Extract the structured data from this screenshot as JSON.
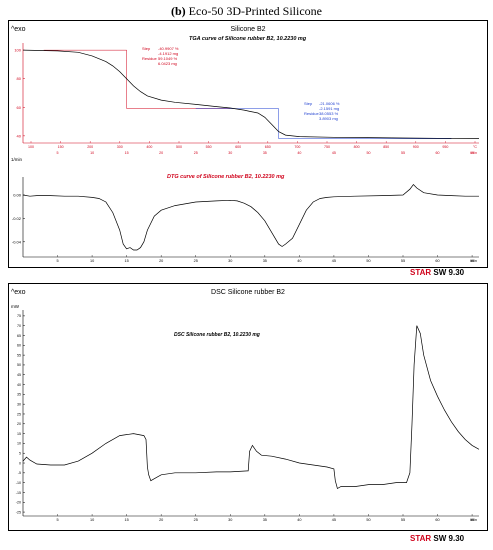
{
  "figure": {
    "label": "(b)",
    "title": "Eco-50 3D-Printed Silicone"
  },
  "top_panel": {
    "exo_label": "^exo",
    "header": "Silicone B2",
    "tga_title": "TGA curve of  Silicone rubber B2, 10.2230 mg",
    "dtg_title": "DTG curve of  Silicone rubber B2, 10.2230 mg",
    "dtg_axis_unit": "1/min",
    "step1": {
      "step": "Step",
      "step_val": "-40.9907 %",
      "step_mg": "-4.1912 mg",
      "residue": "Residue",
      "res_val": "59.1049 %",
      "res_mg": "6.0423 mg"
    },
    "step2": {
      "step": "Step",
      "step_val": "-21.0606 %",
      "step_mg": "-2.1591 mg",
      "residue": "Residue",
      "res_val": "38.0553 %",
      "res_mg": "3.8903 mg"
    },
    "star_brand": "STARe SW 9.30",
    "star_prefix": "STAR",
    "star_suffix": " SW 9.30"
  },
  "bottom_panel": {
    "exo_label": "^exo",
    "header": "DSC Silicone rubber B2",
    "dsc_title": "DSC Silicone rubber B2, 10.2230 mg",
    "axis_unit": "mW",
    "star_prefix": "STAR",
    "star_suffix": " SW 9.30"
  },
  "chart_data": [
    {
      "type": "line",
      "title": "TGA curve of  Silicone rubber B2, 10.2230 mg",
      "xlabel": "min",
      "ylabel": "%",
      "x_ticks": [
        5,
        10,
        15,
        20,
        25,
        30,
        35,
        40,
        45,
        50,
        55,
        60,
        65
      ],
      "temp_ticks": [
        "100",
        "150",
        "200",
        "300",
        "400",
        "500",
        "550",
        "600",
        "650",
        "700",
        "750",
        "800",
        "850",
        "900",
        "950",
        "°C"
      ],
      "y_ticks": [
        40,
        60,
        80,
        100
      ],
      "ylim": [
        35,
        105
      ],
      "xlim": [
        0,
        66
      ],
      "series": [
        {
          "x": [
            0,
            5,
            8,
            10,
            12,
            13,
            14,
            15,
            16,
            17,
            18,
            20,
            22,
            25,
            28,
            30,
            32,
            33,
            34,
            35,
            36,
            37,
            38,
            40,
            45,
            50,
            55,
            60,
            66
          ],
          "values": [
            100,
            99.5,
            98.5,
            96,
            92,
            89,
            85,
            80,
            75,
            71,
            68,
            65,
            63.5,
            62,
            60.5,
            59.5,
            58,
            57,
            56,
            53,
            48,
            43,
            40.5,
            39.5,
            39,
            38.8,
            38.5,
            38.3,
            38.2
          ]
        }
      ]
    },
    {
      "type": "line",
      "title": "DTG curve of  Silicone rubber B2, 10.2230 mg",
      "xlabel": "min",
      "ylabel": "1/min",
      "x_ticks": [
        5,
        10,
        15,
        20,
        25,
        30,
        35,
        40,
        45,
        50,
        55,
        60,
        65
      ],
      "y_ticks": [
        0.0,
        -0.02,
        -0.04
      ],
      "ylim": [
        -0.053,
        0.012
      ],
      "xlim": [
        0,
        66
      ],
      "series": [
        {
          "x": [
            0,
            1,
            2,
            4,
            6,
            8,
            10,
            11,
            12,
            13,
            14,
            14.5,
            15,
            15.5,
            16,
            16.5,
            17,
            17.5,
            18,
            19,
            20,
            22,
            25,
            28,
            30,
            31,
            32,
            33,
            34,
            35,
            36,
            37,
            37.5,
            38,
            39,
            40,
            41,
            42,
            43,
            44,
            45,
            48,
            52,
            55,
            56,
            56.5,
            57,
            58,
            60,
            62,
            64,
            66
          ],
          "values": [
            0.0,
            -0.001,
            -0.0005,
            -0.0005,
            -0.001,
            -0.001,
            -0.002,
            -0.003,
            -0.006,
            -0.015,
            -0.03,
            -0.042,
            -0.046,
            -0.045,
            -0.047,
            -0.047,
            -0.045,
            -0.04,
            -0.03,
            -0.018,
            -0.013,
            -0.009,
            -0.006,
            -0.005,
            -0.0045,
            -0.005,
            -0.007,
            -0.01,
            -0.015,
            -0.022,
            -0.032,
            -0.042,
            -0.044,
            -0.042,
            -0.037,
            -0.025,
            -0.013,
            -0.006,
            -0.003,
            -0.002,
            -0.0015,
            -0.001,
            -0.0005,
            0.0,
            0.005,
            0.009,
            0.006,
            0.002,
            0.0,
            -0.0005,
            -0.001,
            -0.001
          ]
        }
      ]
    },
    {
      "type": "line",
      "title": "DSC Silicone rubber B2, 10.2230 mg",
      "xlabel": "min",
      "ylabel": "mW",
      "x_ticks": [
        5,
        10,
        15,
        20,
        25,
        30,
        35,
        40,
        45,
        50,
        55,
        60,
        65
      ],
      "y_ticks": [
        -25,
        -20,
        -15,
        -10,
        -5,
        0,
        5,
        10,
        15,
        20,
        25,
        30,
        35,
        40,
        45,
        50,
        55,
        60,
        65,
        70,
        75
      ],
      "ylim": [
        -27,
        78
      ],
      "xlim": [
        0,
        66
      ],
      "series": [
        {
          "x": [
            0,
            0.5,
            1,
            2,
            4,
            6,
            8,
            10,
            12,
            14,
            16,
            17.5,
            17.8,
            18,
            18.2,
            18.5,
            19,
            20,
            22,
            25,
            28,
            30,
            32.5,
            32.6,
            32.8,
            33.2,
            33.8,
            34.5,
            36,
            38,
            40,
            42,
            44,
            45,
            45.2,
            45.5,
            46,
            48,
            50,
            52,
            54,
            55.5,
            56,
            56.3,
            56.6,
            57,
            57.5,
            58,
            59,
            60,
            61,
            62,
            63,
            64,
            65,
            66
          ],
          "values": [
            1,
            3,
            1.5,
            -0.5,
            -1,
            -1,
            1,
            5,
            10,
            14,
            15,
            14,
            12,
            -2,
            -6,
            -9,
            -8,
            -6,
            -5,
            -5,
            -4.5,
            -4.5,
            -4,
            -4,
            6,
            9,
            6,
            4,
            3.5,
            2,
            0,
            -1,
            -2,
            -3,
            -9,
            -13,
            -12,
            -12,
            -11,
            -11,
            -10,
            -10,
            -5,
            20,
            50,
            70,
            66,
            55,
            42,
            34,
            27,
            21,
            16,
            12,
            9,
            7
          ]
        }
      ]
    }
  ]
}
